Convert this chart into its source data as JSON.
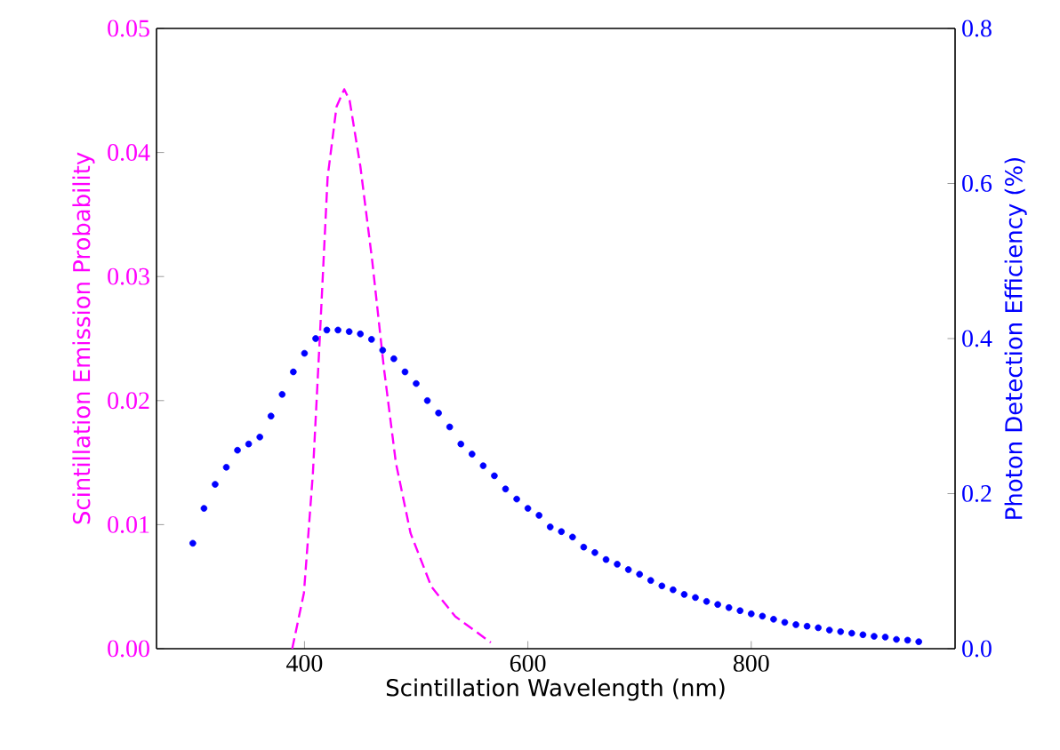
{
  "chart_data": {
    "type": "line",
    "xlabel": "Scintillation Wavelength (nm)",
    "ylabel": "Scintillation Emission Probability",
    "y2label": "Photon Detection Efficiency (%)",
    "xlim": [
      267.5,
      982.5
    ],
    "xticks": [
      400,
      600,
      800
    ],
    "ylim": [
      0,
      0.05
    ],
    "yticks": [
      {
        "value": 0,
        "label": "0.00"
      },
      0.01,
      0.02,
      0.03,
      0.04,
      0.05
    ],
    "y2lim": [
      0,
      0.8
    ],
    "y2ticks": [
      {
        "value": 0,
        "label": "0.0"
      },
      0.2,
      0.4,
      0.6,
      0.8
    ],
    "grid": false,
    "legend": false,
    "series": [
      {
        "axis": "y",
        "color": "#ff00ff",
        "line_style": "dashed",
        "marker": "none",
        "x": [
          389,
          399.5,
          407.5,
          414,
          420.7,
          428.7,
          435.6,
          440.4,
          450,
          460.6,
          471,
          481.8,
          495,
          513.6,
          535,
          566.8
        ],
        "values": [
          0.0,
          0.0045,
          0.0141,
          0.0256,
          0.038,
          0.0437,
          0.0451,
          0.0442,
          0.0389,
          0.0313,
          0.0227,
          0.015,
          0.0093,
          0.005,
          0.0026,
          0.0005
        ]
      },
      {
        "type": "scatter",
        "axis": "y2",
        "color": "#0000ff",
        "marker": "circle",
        "x": [
          300,
          310,
          320,
          330,
          340,
          350,
          360,
          370,
          380,
          390,
          400,
          410,
          420,
          430,
          440,
          450,
          460,
          470,
          480,
          490,
          500,
          510,
          520,
          530,
          540,
          550,
          560,
          570,
          580,
          590,
          600,
          610,
          620,
          630,
          640,
          650,
          660,
          670,
          680,
          690,
          700,
          710,
          720,
          730,
          740,
          750,
          760,
          770,
          780,
          790,
          800,
          810,
          820,
          830,
          840,
          850,
          860,
          870,
          880,
          890,
          900,
          910,
          920,
          930,
          940,
          950
        ],
        "values": [
          0.136,
          0.181,
          0.212,
          0.234,
          0.256,
          0.264,
          0.273,
          0.3,
          0.328,
          0.357,
          0.381,
          0.4,
          0.411,
          0.411,
          0.409,
          0.406,
          0.399,
          0.385,
          0.374,
          0.357,
          0.342,
          0.32,
          0.304,
          0.286,
          0.264,
          0.251,
          0.236,
          0.223,
          0.206,
          0.193,
          0.181,
          0.172,
          0.157,
          0.151,
          0.144,
          0.131,
          0.124,
          0.115,
          0.109,
          0.102,
          0.096,
          0.088,
          0.081,
          0.076,
          0.07,
          0.066,
          0.061,
          0.057,
          0.053,
          0.049,
          0.045,
          0.042,
          0.038,
          0.034,
          0.031,
          0.029,
          0.027,
          0.024,
          0.022,
          0.02,
          0.018,
          0.016,
          0.015,
          0.012,
          0.011,
          0.009
        ]
      }
    ]
  }
}
